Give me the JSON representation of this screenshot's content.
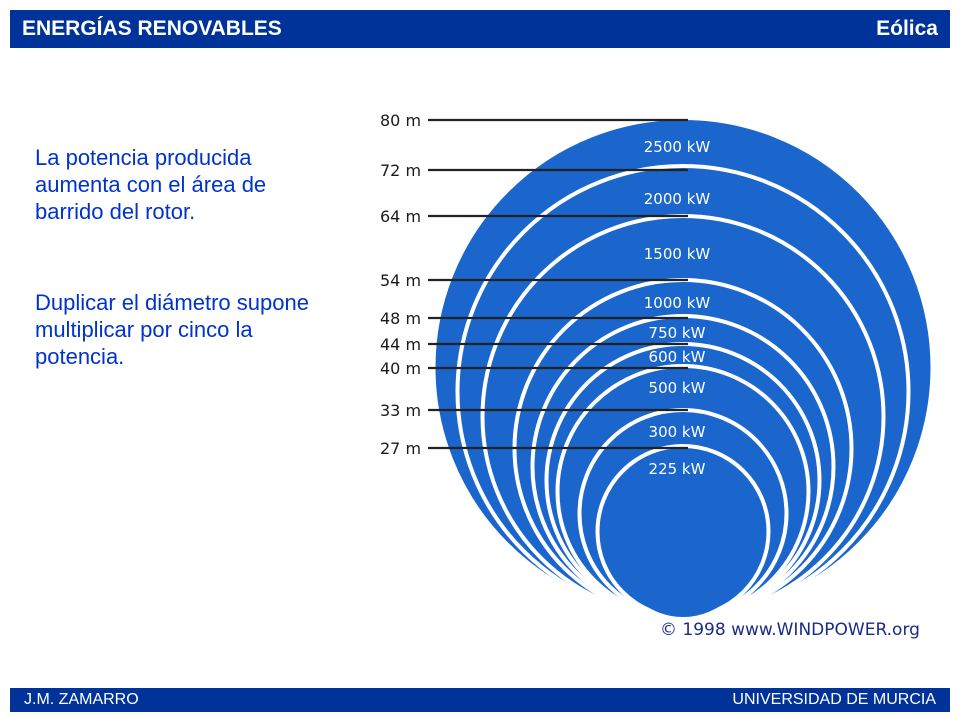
{
  "header": {
    "title": "ENERGÍAS RENOVABLES",
    "section": "Eólica"
  },
  "body": {
    "paragraph_1": "La potencia producida aumenta con el área de barrido del rotor.",
    "paragraph_2": "Duplicar el diámetro supone multiplicar por cinco la potencia."
  },
  "diagram": {
    "rotors": [
      {
        "diameter": "80 m",
        "power": "2500 kW"
      },
      {
        "diameter": "72 m",
        "power": "2000 kW"
      },
      {
        "diameter": "64 m",
        "power": "1500 kW"
      },
      {
        "diameter": "54 m",
        "power": "1000 kW"
      },
      {
        "diameter": "48 m",
        "power": "750 kW"
      },
      {
        "diameter": "44 m",
        "power": "600 kW"
      },
      {
        "diameter": "40 m",
        "power": "500 kW"
      },
      {
        "diameter": "33 m",
        "power": "300 kW"
      },
      {
        "diameter": "27 m",
        "power": "225 kW"
      },
      {
        "diameter": "",
        "power": ""
      }
    ],
    "copyright": "© 1998 www.WINDPOWER.org",
    "colors": {
      "disc": "#1a66cc",
      "line": "#222222",
      "label": "#ffffff"
    }
  },
  "footer": {
    "author": "J.M. ZAMARRO",
    "institution": "UNIVERSIDAD DE MURCIA"
  }
}
